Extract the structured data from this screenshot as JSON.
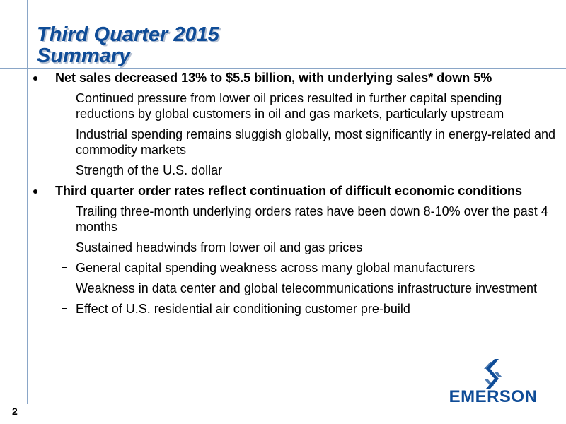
{
  "slide": {
    "title_line1": "Third Quarter 2015",
    "title_line2": "Summary",
    "page_number": "2"
  },
  "bullets": [
    {
      "text": "Net sales decreased 13% to $5.5 billion, with underlying sales* down 5%",
      "subitems": [
        "Continued pressure from lower oil prices resulted in further capital spending reductions by global customers in oil and gas markets, particularly upstream",
        "Industrial spending remains sluggish globally, most significantly in energy-related and commodity markets",
        "Strength of the U.S. dollar"
      ]
    },
    {
      "text": "Third quarter order rates reflect continuation of difficult economic conditions",
      "subitems": [
        "Trailing three-month underlying orders rates have been down 8-10% over the past 4 months",
        "Sustained headwinds from lower oil and gas prices",
        "General capital spending weakness across many global manufacturers",
        "Weakness in data center and global telecommunications infrastructure investment",
        "Effect of U.S. residential air conditioning customer pre-build"
      ]
    }
  ],
  "logo": {
    "wordmark": "EMERSON",
    "icon": "emerson-logo-icon",
    "color": "#0f4c97"
  },
  "colors": {
    "title": "#0f4c97",
    "rules": "#8aa6c7"
  }
}
